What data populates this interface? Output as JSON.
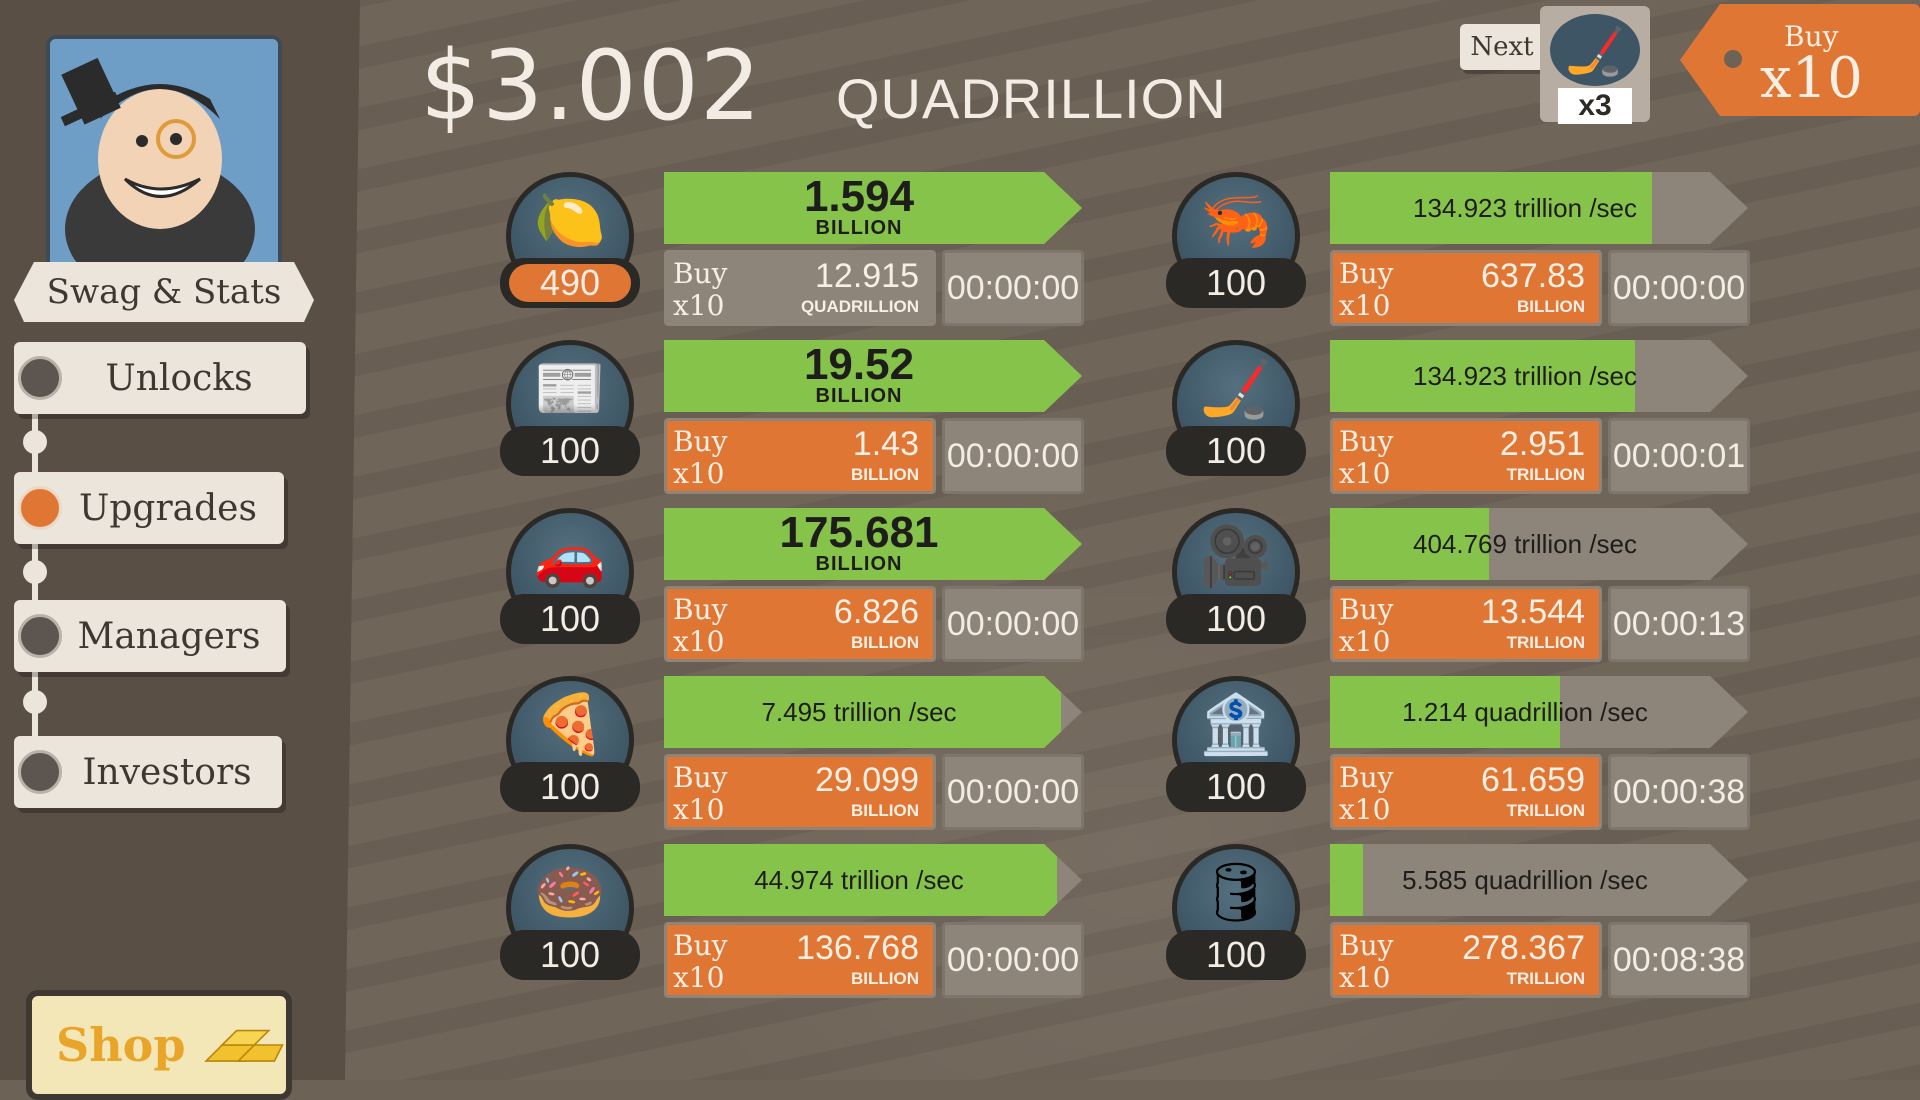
{
  "money": {
    "amount": "$3.002",
    "unit": "QUADRILLION"
  },
  "sidebar": {
    "stats_label": "Swag & Stats",
    "nav": [
      {
        "label": "Unlocks",
        "active": false
      },
      {
        "label": "Upgrades",
        "active": true
      },
      {
        "label": "Managers",
        "active": false
      },
      {
        "label": "Investors",
        "active": false
      }
    ],
    "shop_label": "Shop"
  },
  "header": {
    "next_label": "Next",
    "next_multiplier": "x3",
    "buy_label": "Buy",
    "buy_multiplier": "x10"
  },
  "businesses": [
    {
      "icon": "lemon-icon",
      "glyph": "🍋",
      "count": "490",
      "highlight": true,
      "progress": 1.0,
      "main": "1.594",
      "main_unit": "BILLION",
      "rate": "",
      "buy1": "Buy",
      "buy2": "x10",
      "cost": "12.915",
      "cost_unit": "QUADRILLION",
      "affordable": false,
      "timer": "00:00:00"
    },
    {
      "icon": "newspaper-icon",
      "glyph": "📰",
      "count": "100",
      "highlight": false,
      "progress": 1.0,
      "main": "19.52",
      "main_unit": "BILLION",
      "rate": "",
      "buy1": "Buy",
      "buy2": "x10",
      "cost": "1.43",
      "cost_unit": "BILLION",
      "affordable": true,
      "timer": "00:00:00"
    },
    {
      "icon": "car-wash-icon",
      "glyph": "🚗",
      "count": "100",
      "highlight": false,
      "progress": 1.0,
      "main": "175.681",
      "main_unit": "BILLION",
      "rate": "",
      "buy1": "Buy",
      "buy2": "x10",
      "cost": "6.826",
      "cost_unit": "BILLION",
      "affordable": true,
      "timer": "00:00:00"
    },
    {
      "icon": "pizza-icon",
      "glyph": "🍕",
      "count": "100",
      "highlight": false,
      "progress": 0.95,
      "main": "",
      "main_unit": "",
      "rate": "7.495 trillion /sec",
      "buy1": "Buy",
      "buy2": "x10",
      "cost": "29.099",
      "cost_unit": "BILLION",
      "affordable": true,
      "timer": "00:00:00"
    },
    {
      "icon": "donut-icon",
      "glyph": "🍩",
      "count": "100",
      "highlight": false,
      "progress": 0.94,
      "main": "",
      "main_unit": "",
      "rate": "44.974 trillion /sec",
      "buy1": "Buy",
      "buy2": "x10",
      "cost": "136.768",
      "cost_unit": "BILLION",
      "affordable": true,
      "timer": "00:00:00"
    },
    {
      "icon": "shrimp-icon",
      "glyph": "🦐",
      "count": "100",
      "highlight": false,
      "progress": 0.77,
      "main": "",
      "main_unit": "",
      "rate": "134.923 trillion /sec",
      "buy1": "Buy",
      "buy2": "x10",
      "cost": "637.83",
      "cost_unit": "BILLION",
      "affordable": true,
      "timer": "00:00:00"
    },
    {
      "icon": "hockey-icon",
      "glyph": "🏒",
      "count": "100",
      "highlight": false,
      "progress": 0.73,
      "main": "",
      "main_unit": "",
      "rate": "134.923 trillion /sec",
      "buy1": "Buy",
      "buy2": "x10",
      "cost": "2.951",
      "cost_unit": "TRILLION",
      "affordable": true,
      "timer": "00:00:01"
    },
    {
      "icon": "movie-camera-icon",
      "glyph": "🎥",
      "count": "100",
      "highlight": false,
      "progress": 0.38,
      "main": "",
      "main_unit": "",
      "rate": "404.769 trillion /sec",
      "buy1": "Buy",
      "buy2": "x10",
      "cost": "13.544",
      "cost_unit": "TRILLION",
      "affordable": true,
      "timer": "00:00:13"
    },
    {
      "icon": "bank-icon",
      "glyph": "🏦",
      "count": "100",
      "highlight": false,
      "progress": 0.55,
      "main": "",
      "main_unit": "",
      "rate": "1.214 quadrillion /sec",
      "buy1": "Buy",
      "buy2": "x10",
      "cost": "61.659",
      "cost_unit": "TRILLION",
      "affordable": true,
      "timer": "00:00:38"
    },
    {
      "icon": "oil-rig-icon",
      "glyph": "🛢",
      "count": "100",
      "highlight": false,
      "progress": 0.08,
      "main": "",
      "main_unit": "",
      "rate": "5.585 quadrillion /sec",
      "buy1": "Buy",
      "buy2": "x10",
      "cost": "278.367",
      "cost_unit": "TRILLION",
      "affordable": true,
      "timer": "00:08:38"
    }
  ],
  "colors": {
    "progress": "#86c34a",
    "buy": "#e07634",
    "badge": "#3d5564"
  }
}
